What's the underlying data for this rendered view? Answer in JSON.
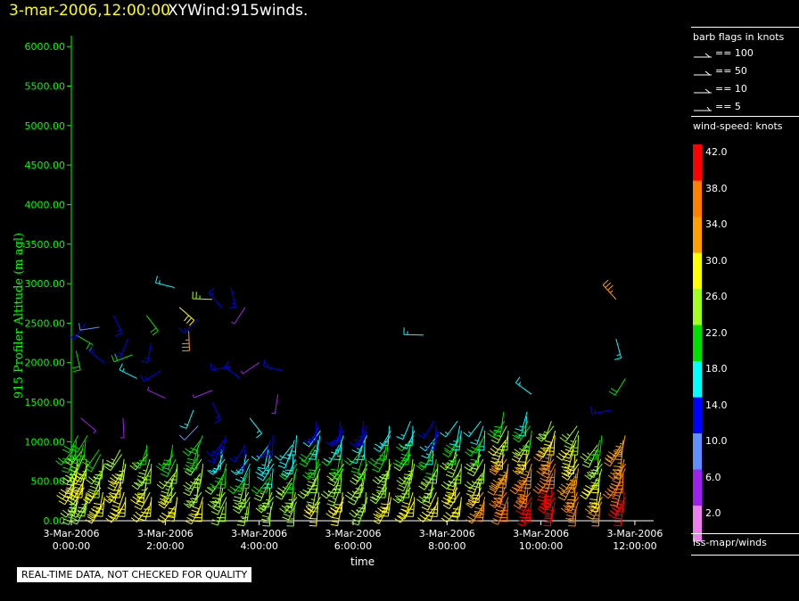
{
  "header": {
    "date_label": "3-mar-2006,12:00:00",
    "name_label": "XYWind:915winds."
  },
  "quality_note": "REAL-TIME DATA, NOT CHECKED FOR QUALITY",
  "legend": {
    "flags_title": "barb flags in knots",
    "flags": [
      "== 100",
      "== 50",
      "== 10",
      "== 5"
    ],
    "speed_title": "wind-speed: knots",
    "footer": "iss-mapr/winds"
  },
  "chart_data": {
    "type": "scatter",
    "title": "",
    "ylabel": "915 Profiler Altitude (m agl)",
    "xlabel": "time",
    "ylim": [
      0,
      6250
    ],
    "y_ticks": [
      "0.00",
      "500.00",
      "1000.00",
      "1500.00",
      "2000.00",
      "2500.00",
      "3000.00",
      "3500.00",
      "4000.00",
      "4500.00",
      "5000.00",
      "5500.00",
      "6000.00"
    ],
    "x_ticks": [
      {
        "date": "3-Mar-2006",
        "time": "0:00:00"
      },
      {
        "date": "3-Mar-2006",
        "time": "2:00:00"
      },
      {
        "date": "3-Mar-2006",
        "time": "4:00:00"
      },
      {
        "date": "3-Mar-2006",
        "time": "6:00:00"
      },
      {
        "date": "3-Mar-2006",
        "time": "8:00:00"
      },
      {
        "date": "3-Mar-2006",
        "time": "10:00:00"
      },
      {
        "date": "3-Mar-2006",
        "time": "12:00:00"
      }
    ],
    "xlim_hours": [
      0,
      12.4
    ],
    "colorbar": {
      "title": "wind-speed: knots",
      "labels": [
        "42.0",
        "38.0",
        "34.0",
        "30.0",
        "26.0",
        "22.0",
        "18.0",
        "14.0",
        "10.0",
        "6.0",
        "2.0"
      ],
      "colors": [
        "#ff0000",
        "#ff7f00",
        "#ff9f00",
        "#ffff00",
        "#a0ff20",
        "#00e000",
        "#00ffff",
        "#0000ff",
        "#6090ff",
        "#a020f0",
        "#ee80ee"
      ]
    },
    "profiles": [
      {
        "t": 0.1,
        "top": 1100,
        "speeds": [
          26,
          30,
          30,
          28,
          22,
          22
        ]
      },
      {
        "t": 0.3,
        "top": 1100,
        "speeds": [
          28,
          30,
          30,
          26,
          22
        ]
      },
      {
        "t": 0.65,
        "top": 900,
        "speeds": [
          30,
          30,
          28,
          26,
          22
        ]
      },
      {
        "t": 1.1,
        "top": 900,
        "speeds": [
          32,
          32,
          30,
          28
        ]
      },
      {
        "t": 1.65,
        "top": 1000,
        "speeds": [
          30,
          30,
          28,
          26,
          22
        ]
      },
      {
        "t": 2.2,
        "top": 1000,
        "speeds": [
          30,
          30,
          28,
          26,
          24,
          22
        ]
      },
      {
        "t": 2.75,
        "top": 1100,
        "speeds": [
          30,
          28,
          26,
          26,
          22,
          22
        ]
      },
      {
        "t": 3.25,
        "top": 1100,
        "speeds": [
          26,
          26,
          22,
          18,
          14
        ]
      },
      {
        "t": 3.75,
        "top": 1000,
        "speeds": [
          28,
          26,
          22,
          18,
          14
        ]
      },
      {
        "t": 4.25,
        "top": 1100,
        "speeds": [
          28,
          26,
          22,
          20,
          18,
          14
        ]
      },
      {
        "t": 4.75,
        "top": 1100,
        "speeds": [
          26,
          26,
          22,
          20,
          18
        ]
      },
      {
        "t": 5.25,
        "top": 1300,
        "speeds": [
          30,
          28,
          26,
          24,
          22,
          18,
          14
        ]
      },
      {
        "t": 5.75,
        "top": 1300,
        "speeds": [
          30,
          28,
          26,
          22,
          18,
          14
        ]
      },
      {
        "t": 6.25,
        "top": 1300,
        "speeds": [
          28,
          28,
          26,
          22,
          18,
          14
        ]
      },
      {
        "t": 6.75,
        "top": 1200,
        "speeds": [
          30,
          28,
          26,
          22,
          18
        ]
      },
      {
        "t": 7.25,
        "top": 1300,
        "speeds": [
          30,
          28,
          26,
          22,
          18
        ]
      },
      {
        "t": 7.75,
        "top": 1300,
        "speeds": [
          30,
          28,
          26,
          22,
          18,
          14
        ]
      },
      {
        "t": 8.25,
        "top": 1300,
        "speeds": [
          32,
          30,
          28,
          26,
          22,
          18
        ]
      },
      {
        "t": 8.75,
        "top": 1300,
        "speeds": [
          34,
          30,
          28,
          26,
          22,
          18
        ]
      },
      {
        "t": 9.25,
        "top": 1400,
        "speeds": [
          40,
          38,
          36,
          34,
          30,
          26,
          22
        ]
      },
      {
        "t": 9.75,
        "top": 1400,
        "speeds": [
          42,
          40,
          38,
          36,
          30,
          26,
          22,
          18
        ]
      },
      {
        "t": 10.25,
        "top": 1300,
        "speeds": [
          42,
          42,
          40,
          38,
          34,
          30,
          26
        ]
      },
      {
        "t": 10.75,
        "top": 1200,
        "speeds": [
          38,
          36,
          34,
          32,
          30,
          26
        ]
      },
      {
        "t": 11.25,
        "top": 1100,
        "speeds": [
          34,
          32,
          30,
          28,
          26,
          22
        ]
      },
      {
        "t": 11.75,
        "top": 1100,
        "speeds": [
          42,
          40,
          38,
          36,
          34
        ]
      }
    ],
    "upper_barbs": [
      {
        "t": 0.1,
        "z": 2350,
        "spd": 22
      },
      {
        "t": 0.1,
        "z": 2150,
        "spd": 22
      },
      {
        "t": 0.3,
        "z": 2500,
        "spd": 14
      },
      {
        "t": 0.6,
        "z": 2450,
        "spd": 10
      },
      {
        "t": 0.7,
        "z": 2000,
        "spd": 14
      },
      {
        "t": 0.9,
        "z": 2600,
        "spd": 14
      },
      {
        "t": 1.2,
        "z": 2300,
        "spd": 14
      },
      {
        "t": 1.3,
        "z": 2100,
        "spd": 22
      },
      {
        "t": 1.4,
        "z": 1800,
        "spd": 18
      },
      {
        "t": 1.6,
        "z": 2600,
        "spd": 22
      },
      {
        "t": 1.7,
        "z": 2250,
        "spd": 14
      },
      {
        "t": 1.9,
        "z": 1900,
        "spd": 14
      },
      {
        "t": 2.2,
        "z": 2950,
        "spd": 18
      },
      {
        "t": 2.3,
        "z": 2700,
        "spd": 30
      },
      {
        "t": 2.5,
        "z": 2400,
        "spd": 34
      },
      {
        "t": 2.7,
        "z": 2550,
        "spd": 14
      },
      {
        "t": 3.0,
        "z": 2800,
        "spd": 26
      },
      {
        "t": 3.2,
        "z": 2700,
        "spd": 14
      },
      {
        "t": 3.4,
        "z": 2950,
        "spd": 14
      },
      {
        "t": 3.7,
        "z": 2700,
        "spd": 6
      },
      {
        "t": 3.4,
        "z": 1950,
        "spd": 14
      },
      {
        "t": 3.6,
        "z": 1800,
        "spd": 14
      },
      {
        "t": 3.0,
        "z": 1500,
        "spd": 14
      },
      {
        "t": 2.6,
        "z": 1400,
        "spd": 18
      },
      {
        "t": 3.0,
        "z": 1650,
        "spd": 6
      },
      {
        "t": 2.0,
        "z": 1550,
        "spd": 6
      },
      {
        "t": 3.8,
        "z": 1300,
        "spd": 18
      },
      {
        "t": 4.4,
        "z": 1600,
        "spd": 6
      },
      {
        "t": 4.0,
        "z": 2000,
        "spd": 6
      },
      {
        "t": 4.5,
        "z": 1900,
        "spd": 14
      },
      {
        "t": 0.2,
        "z": 1300,
        "spd": 6
      },
      {
        "t": 1.1,
        "z": 1300,
        "spd": 6
      },
      {
        "t": 2.7,
        "z": 1200,
        "spd": 10
      },
      {
        "t": 7.5,
        "z": 2350,
        "spd": 18
      },
      {
        "t": 11.6,
        "z": 2800,
        "spd": 34
      },
      {
        "t": 11.6,
        "z": 2300,
        "spd": 18
      },
      {
        "t": 11.8,
        "z": 1800,
        "spd": 22
      },
      {
        "t": 11.5,
        "z": 1400,
        "spd": 14
      },
      {
        "t": 9.8,
        "z": 1600,
        "spd": 18
      }
    ]
  }
}
